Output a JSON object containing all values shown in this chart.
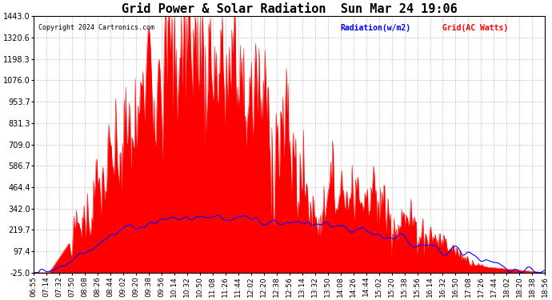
{
  "title": "Grid Power & Solar Radiation  Sun Mar 24 19:06",
  "copyright": "Copyright 2024 Cartronics.com",
  "legend_radiation": "Radiation(w/m2)",
  "legend_grid": "Grid(AC Watts)",
  "ymin": -25.0,
  "ymax": 1443.0,
  "yticks": [
    1443.0,
    1320.6,
    1198.3,
    1076.0,
    953.7,
    831.3,
    709.0,
    586.7,
    464.4,
    342.0,
    219.7,
    97.4,
    -25.0
  ],
  "background_color": "#ffffff",
  "plot_bg_color": "#ffffff",
  "grid_color": "#bbbbbb",
  "radiation_color": "#ff0000",
  "grid_power_color": "#0000ff",
  "title_fontsize": 11,
  "tick_fontsize": 7,
  "num_points": 600
}
